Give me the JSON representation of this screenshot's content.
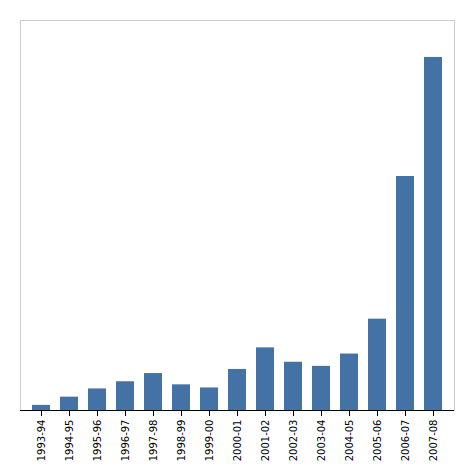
{
  "chart_data": {
    "type": "bar",
    "categories": [
      "1993-94",
      "1994-95",
      "1995-96",
      "1996-97",
      "1997-98",
      "1998-99",
      "1999-00",
      "2000-01",
      "2001-02",
      "2002-03",
      "2003-04",
      "2004-05",
      "2005-06",
      "2006-07",
      "2007-08"
    ],
    "values": [
      0.5,
      1.3,
      2.1,
      2.8,
      3.6,
      2.5,
      2.2,
      4.0,
      6.1,
      4.7,
      4.3,
      5.5,
      8.9,
      22.8,
      34.4
    ],
    "color": "#4472a4",
    "ylim": [
      0,
      38
    ],
    "tick_labels": "x"
  }
}
